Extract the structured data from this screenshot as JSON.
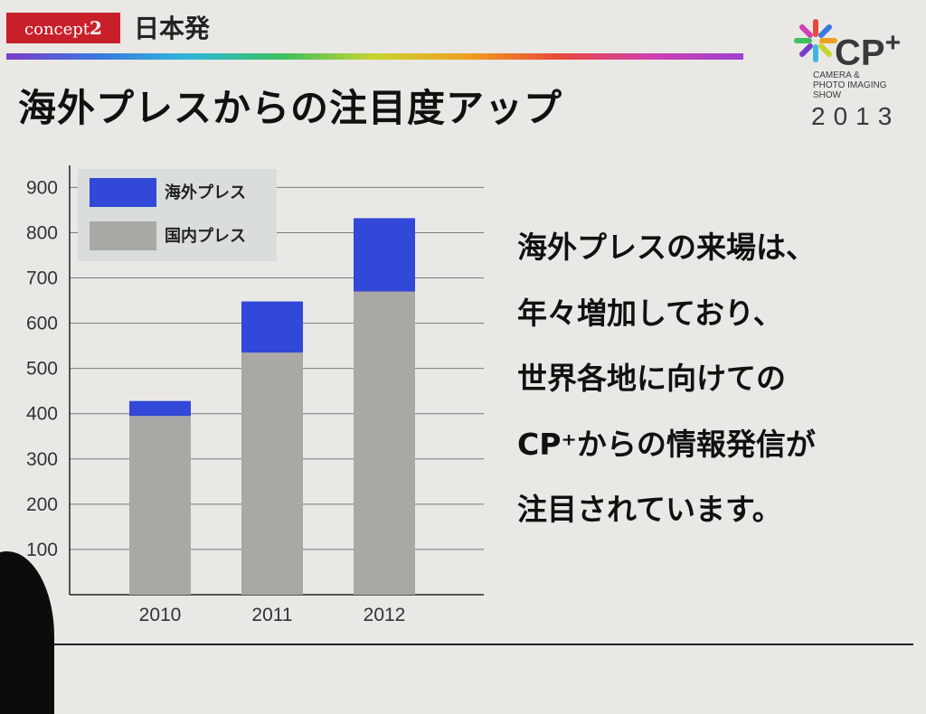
{
  "header": {
    "badge_word": "concept",
    "badge_number": "2",
    "section_title": "日本発"
  },
  "logo": {
    "mark": "CP",
    "plus": "+",
    "subtitle_lines": [
      "CAMERA &",
      "PHOTO IMAGING",
      "SHOW"
    ],
    "year": "2013"
  },
  "title": "海外プレスからの注目度アップ",
  "body_lines": [
    "海外プレスの来場は、",
    "年々増加しており、",
    "世界各地に向けての",
    "CP⁺からの情報発信が",
    "注目されています。"
  ],
  "colors": {
    "overseas": "#3248d8",
    "domestic": "#a9a8a5",
    "accent_red": "#c8202a"
  },
  "chart_data": {
    "type": "bar",
    "stacked": true,
    "categories": [
      "2010",
      "2011",
      "2012"
    ],
    "series": [
      {
        "name": "国内プレス",
        "values": [
          395,
          535,
          670
        ],
        "color": "#a9a8a5"
      },
      {
        "name": "海外プレス",
        "values": [
          33,
          113,
          162
        ],
        "color": "#3248d8"
      }
    ],
    "legend": [
      "海外プレス",
      "国内プレス"
    ],
    "legend_position": "top-left",
    "yticks": [
      100,
      200,
      300,
      400,
      500,
      600,
      700,
      800,
      900
    ],
    "ylim": [
      0,
      950
    ],
    "grid": true,
    "title": "",
    "xlabel": "",
    "ylabel": ""
  }
}
